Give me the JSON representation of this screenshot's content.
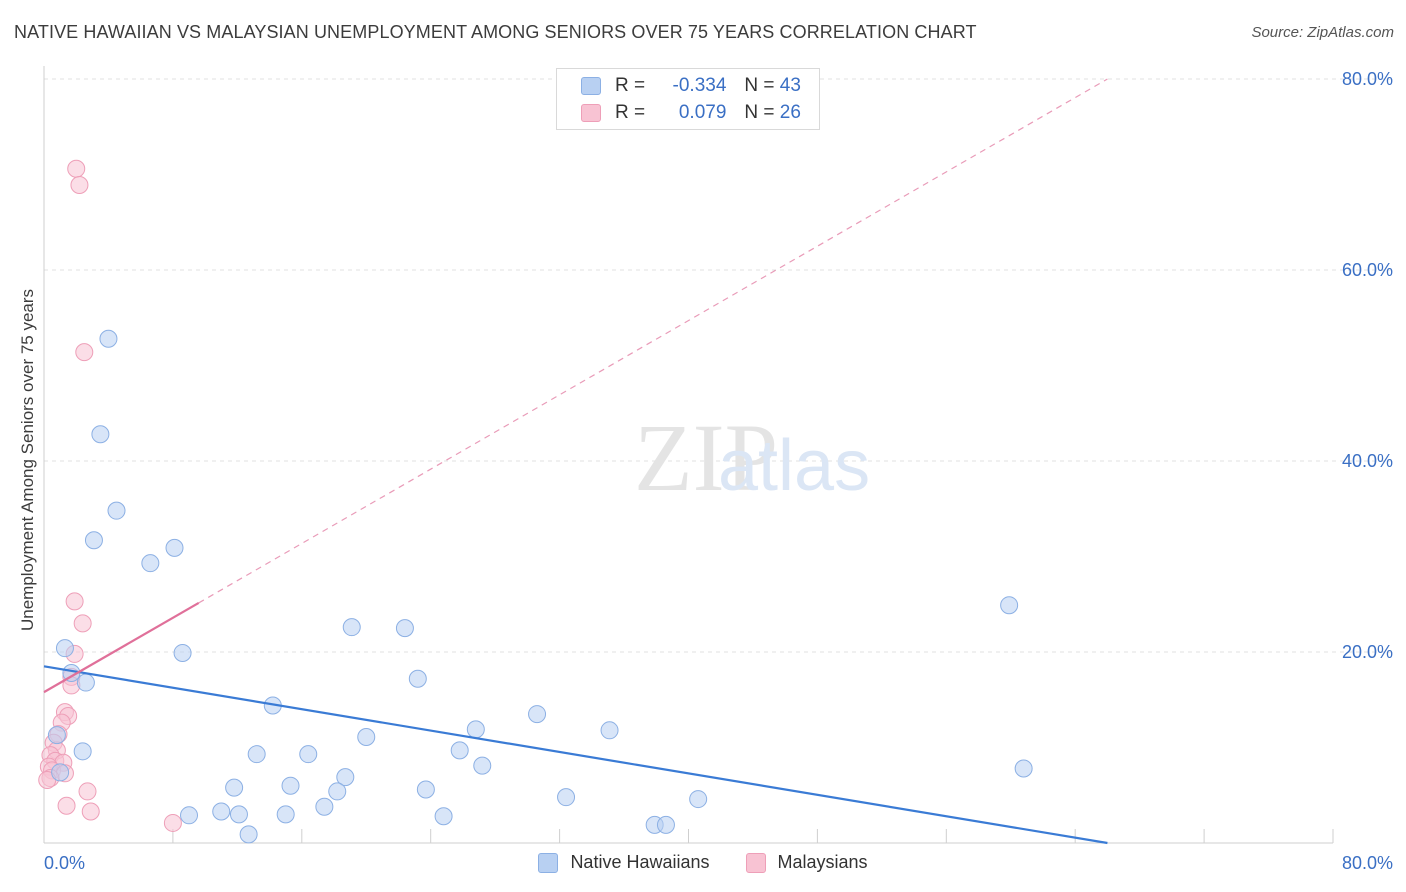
{
  "header": {
    "title": "NATIVE HAWAIIAN VS MALAYSIAN UNEMPLOYMENT AMONG SENIORS OVER 75 YEARS CORRELATION CHART",
    "source": "Source: ZipAtlas.com"
  },
  "watermark": {
    "zip": "ZIP",
    "atlas": "atlas"
  },
  "legend": {
    "r_label": "R =",
    "n_label": "N =",
    "series": [
      {
        "name": "Native Hawaiians",
        "r": "-0.334",
        "n": "43"
      },
      {
        "name": "Malaysians",
        "r": "0.079",
        "n": "26"
      }
    ]
  },
  "colors": {
    "blue_fill": "#b8d0f2",
    "blue_stroke": "#8cb0e4",
    "blue_line": "#3a7bd5",
    "pink_fill": "#f8c3d3",
    "pink_stroke": "#ee9fb8",
    "pink_line": "#e0709a",
    "accent_text": "#3a6fc4",
    "grid": "#e0e0e0"
  },
  "chart_data": {
    "type": "scatter",
    "title": "NATIVE HAWAIIAN VS MALAYSIAN UNEMPLOYMENT AMONG SENIORS OVER 75 YEARS CORRELATION CHART",
    "xlabel": "",
    "ylabel": "Unemployment Among Seniors over 75 years",
    "xlim": [
      0,
      80
    ],
    "ylim": [
      0,
      80
    ],
    "x_tick_labels": [
      "0.0%",
      "80.0%"
    ],
    "y_tick_labels": [
      "20.0%",
      "40.0%",
      "60.0%",
      "80.0%"
    ],
    "y_ticks": [
      20,
      40,
      60,
      80
    ],
    "series": [
      {
        "name": "Native Hawaiians",
        "points": [
          [
            4.0,
            52.8
          ],
          [
            3.5,
            42.8
          ],
          [
            4.5,
            34.8
          ],
          [
            3.1,
            31.7
          ],
          [
            8.1,
            30.9
          ],
          [
            6.6,
            29.3
          ],
          [
            1.3,
            20.4
          ],
          [
            8.6,
            19.9
          ],
          [
            1.7,
            17.8
          ],
          [
            2.6,
            16.8
          ],
          [
            19.1,
            22.6
          ],
          [
            22.4,
            22.5
          ],
          [
            23.2,
            17.2
          ],
          [
            14.2,
            14.4
          ],
          [
            26.8,
            11.9
          ],
          [
            30.6,
            13.5
          ],
          [
            35.1,
            11.8
          ],
          [
            59.9,
            24.9
          ],
          [
            0.8,
            11.3
          ],
          [
            2.4,
            9.6
          ],
          [
            13.2,
            9.3
          ],
          [
            16.4,
            9.3
          ],
          [
            20.0,
            11.1
          ],
          [
            25.8,
            9.7
          ],
          [
            27.2,
            8.1
          ],
          [
            60.8,
            7.8
          ],
          [
            18.7,
            6.9
          ],
          [
            11.8,
            5.8
          ],
          [
            15.3,
            6.0
          ],
          [
            18.2,
            5.4
          ],
          [
            23.7,
            5.6
          ],
          [
            32.4,
            4.8
          ],
          [
            40.6,
            4.6
          ],
          [
            9.0,
            2.9
          ],
          [
            11.0,
            3.3
          ],
          [
            12.1,
            3.0
          ],
          [
            15.0,
            3.0
          ],
          [
            17.4,
            3.8
          ],
          [
            24.8,
            2.8
          ],
          [
            37.9,
            1.9
          ],
          [
            38.6,
            1.9
          ],
          [
            12.7,
            0.9
          ],
          [
            1.0,
            7.4
          ]
        ]
      },
      {
        "name": "Malaysians",
        "points": [
          [
            2.0,
            70.6
          ],
          [
            2.2,
            68.9
          ],
          [
            2.5,
            51.4
          ],
          [
            1.9,
            25.3
          ],
          [
            2.4,
            23.0
          ],
          [
            1.9,
            19.8
          ],
          [
            1.7,
            17.4
          ],
          [
            1.7,
            16.5
          ],
          [
            1.3,
            13.7
          ],
          [
            1.5,
            13.3
          ],
          [
            1.1,
            12.6
          ],
          [
            0.9,
            11.4
          ],
          [
            0.6,
            10.5
          ],
          [
            0.8,
            9.7
          ],
          [
            0.4,
            9.2
          ],
          [
            0.7,
            8.6
          ],
          [
            1.2,
            8.4
          ],
          [
            0.3,
            8.0
          ],
          [
            0.5,
            7.6
          ],
          [
            1.3,
            7.3
          ],
          [
            0.4,
            6.8
          ],
          [
            0.2,
            6.6
          ],
          [
            2.7,
            5.4
          ],
          [
            1.4,
            3.9
          ],
          [
            2.9,
            3.3
          ],
          [
            8.0,
            2.1
          ]
        ]
      }
    ],
    "trend_lines": [
      {
        "series": "Native Hawaiians",
        "x": [
          0,
          66.0
        ],
        "y": [
          18.5,
          0
        ]
      },
      {
        "series": "Malaysians",
        "solid_x": [
          0,
          9.6
        ],
        "x": [
          0,
          66.0
        ],
        "y": [
          15.8,
          80.0
        ]
      }
    ]
  },
  "bottom_legend": [
    "Native Hawaiians",
    "Malaysians"
  ]
}
